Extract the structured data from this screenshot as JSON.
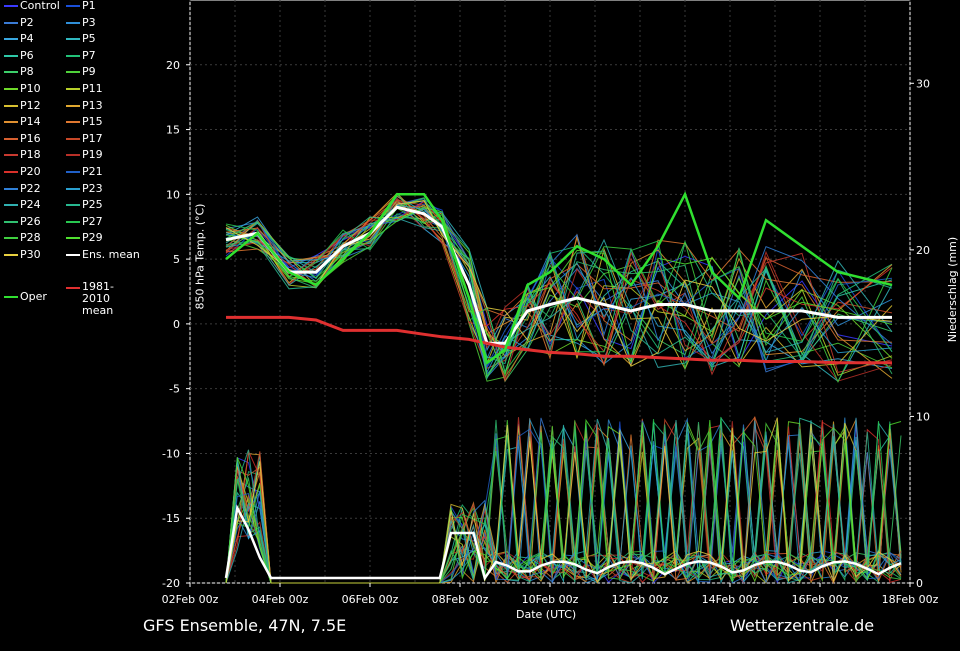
{
  "footer": {
    "left": "GFS Ensemble, 47N, 7.5E",
    "right": "Wetterzentrale.de"
  },
  "chart_data": {
    "type": "line",
    "xlabel": "Date (UTC)",
    "ylabel": "850 hPa Temp. (°C)",
    "y2label": "Niederschlag (mm)",
    "ylim": [
      -20,
      25
    ],
    "y2lim": [
      0,
      35
    ],
    "x_ticks": [
      "02Feb 00z",
      "04Feb 00z",
      "06Feb 00z",
      "08Feb 00z",
      "10Feb 00z",
      "12Feb 00z",
      "14Feb 00z",
      "16Feb 00z",
      "18Feb 00z"
    ],
    "y_ticks": [
      -20,
      -15,
      -10,
      -5,
      0,
      5,
      10,
      15,
      20
    ],
    "y2_ticks": [
      0,
      10,
      20,
      30
    ],
    "grid": true,
    "legend": [
      {
        "name": "Control",
        "color": "#3a3aff"
      },
      {
        "name": "P1",
        "color": "#1a4fd8"
      },
      {
        "name": "P2",
        "color": "#3a7bd5"
      },
      {
        "name": "P3",
        "color": "#2f8fd8"
      },
      {
        "name": "P4",
        "color": "#39a7e0"
      },
      {
        "name": "P5",
        "color": "#30b8c0"
      },
      {
        "name": "P6",
        "color": "#2ec9a8"
      },
      {
        "name": "P7",
        "color": "#22c278"
      },
      {
        "name": "P8",
        "color": "#3ccf6a"
      },
      {
        "name": "P9",
        "color": "#4fd23a"
      },
      {
        "name": "P10",
        "color": "#6fda2a"
      },
      {
        "name": "P11",
        "color": "#b8d02a"
      },
      {
        "name": "P12",
        "color": "#d8c030"
      },
      {
        "name": "P13",
        "color": "#e0a830"
      },
      {
        "name": "P14",
        "color": "#e09030"
      },
      {
        "name": "P15",
        "color": "#e07830"
      },
      {
        "name": "P16",
        "color": "#d86030"
      },
      {
        "name": "P17",
        "color": "#c84828"
      },
      {
        "name": "P18",
        "color": "#c83a30"
      },
      {
        "name": "P19",
        "color": "#b83028"
      },
      {
        "name": "P20",
        "color": "#d8302a"
      },
      {
        "name": "P21",
        "color": "#2060c8"
      },
      {
        "name": "P22",
        "color": "#3080d8"
      },
      {
        "name": "P23",
        "color": "#2aa0d0"
      },
      {
        "name": "P24",
        "color": "#30b0b0"
      },
      {
        "name": "P25",
        "color": "#28b890"
      },
      {
        "name": "P26",
        "color": "#30c070"
      },
      {
        "name": "P27",
        "color": "#28c850"
      },
      {
        "name": "P28",
        "color": "#40d040"
      },
      {
        "name": "P29",
        "color": "#50e030"
      },
      {
        "name": "P30",
        "color": "#e8d040"
      },
      {
        "name": "Ens. mean",
        "color": "#ffffff"
      },
      {
        "name": "1981-2010 mean",
        "color": "#e03030"
      },
      {
        "name": "Oper",
        "color": "#30e030"
      }
    ],
    "series": [
      {
        "name": "Ens. mean",
        "values": [
          6.5,
          7,
          4,
          4,
          6,
          7,
          9,
          8.5,
          7.5,
          3,
          -1.5,
          -1.5,
          1,
          1.5,
          2,
          1.5,
          1,
          1.5,
          1.5,
          1,
          1,
          1,
          1,
          0.5,
          0.5
        ]
      },
      {
        "name": "1981-2010 mean",
        "values": [
          0.5,
          0.5,
          0.5,
          0.3,
          -0.5,
          -0.5,
          -0.5,
          -0.8,
          -1,
          -1.2,
          -1.5,
          -1.8,
          -2,
          -2.2,
          -2.3,
          -2.5,
          -2.5,
          -2.6,
          -2.7,
          -2.8,
          -2.8,
          -2.9,
          -2.9,
          -3,
          -3
        ]
      },
      {
        "name": "Oper",
        "values": [
          5,
          7,
          4,
          3,
          5,
          7,
          10,
          10,
          8,
          2,
          -3,
          -2,
          3,
          4,
          6,
          5,
          3,
          6,
          10,
          4,
          2,
          8,
          6,
          4,
          3
        ]
      }
    ],
    "x_days": [
      2.8,
      3.5,
      4.2,
      4.8,
      5.4,
      6,
      6.6,
      7.2,
      7.6,
      8.2,
      8.6,
      9,
      9.5,
      10,
      10.6,
      11.2,
      11.8,
      12.4,
      13,
      13.6,
      14.2,
      14.8,
      15.6,
      16.4,
      17.6
    ]
  }
}
